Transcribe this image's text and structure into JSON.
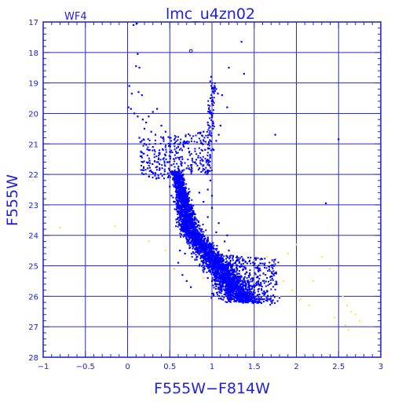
{
  "chart_data": {
    "type": "scatter",
    "title": "lmc_u4zn02",
    "chip_label": "WF4",
    "xlabel": "F555W−F814W",
    "ylabel": "F555W",
    "xlim": [
      -1,
      3
    ],
    "ylim": [
      28,
      17
    ],
    "y_inverted": true,
    "grid": true,
    "x_ticks": [
      -1,
      -0.5,
      0,
      0.5,
      1,
      1.5,
      2,
      2.5,
      3
    ],
    "x_tick_labels": [
      "−1",
      "−0.5",
      "0",
      "0.5",
      "1",
      "1.5",
      "2",
      "2.5",
      "3"
    ],
    "y_ticks": [
      17,
      18,
      19,
      20,
      21,
      22,
      23,
      24,
      25,
      26,
      27,
      28
    ],
    "y_tick_labels": [
      "17",
      "18",
      "19",
      "20",
      "21",
      "22",
      "23",
      "24",
      "25",
      "26",
      "27",
      "28"
    ],
    "colors": {
      "frame": "#1a1acc",
      "grid": "#2a2ad0",
      "text": "#2020e0",
      "blue_points": "#0000ff",
      "yellow_points": "#ffe84a"
    },
    "series": [
      {
        "color_key": "blue_points",
        "sampled": true,
        "points": [
          [
            0.07,
            17.1
          ],
          [
            0.11,
            17.05
          ],
          [
            0.12,
            18.05
          ],
          [
            0.1,
            18.45
          ],
          [
            0.14,
            18.5
          ],
          [
            0.02,
            19.1
          ],
          [
            0.05,
            19.35
          ],
          [
            0.13,
            19.3
          ],
          [
            0.17,
            19.4
          ],
          [
            0.01,
            19.8
          ],
          [
            0.04,
            19.85
          ],
          [
            0.08,
            20.0
          ],
          [
            0.12,
            20.1
          ],
          [
            0.18,
            20.2
          ],
          [
            0.22,
            20.3
          ],
          [
            0.25,
            20.1
          ],
          [
            0.3,
            19.95
          ],
          [
            0.35,
            19.85
          ],
          [
            0.2,
            20.5
          ],
          [
            0.28,
            20.6
          ],
          [
            0.33,
            20.7
          ],
          [
            0.4,
            20.4
          ],
          [
            0.45,
            20.6
          ],
          [
            0.5,
            20.8
          ],
          [
            0.55,
            21.0
          ],
          [
            0.6,
            21.1
          ],
          [
            0.14,
            20.8
          ],
          [
            0.2,
            21.0
          ],
          [
            0.25,
            21.2
          ],
          [
            0.3,
            21.1
          ],
          [
            0.38,
            21.3
          ],
          [
            0.42,
            21.5
          ],
          [
            0.47,
            21.6
          ],
          [
            0.52,
            21.7
          ],
          [
            0.18,
            21.6
          ],
          [
            0.24,
            21.8
          ],
          [
            0.26,
            21.55
          ],
          [
            0.35,
            21.75
          ],
          [
            0.44,
            21.9
          ],
          [
            0.58,
            22.0
          ],
          [
            0.62,
            22.2
          ],
          [
            0.48,
            22.1
          ],
          [
            0.55,
            21.5
          ],
          [
            0.65,
            21.9
          ],
          [
            0.7,
            21.8
          ],
          [
            0.75,
            21.7
          ],
          [
            0.8,
            21.6
          ],
          [
            0.85,
            21.8
          ],
          [
            0.9,
            21.7
          ],
          [
            0.95,
            21.9
          ],
          [
            0.58,
            21.3
          ],
          [
            0.65,
            21.5
          ],
          [
            0.9,
            20.6
          ],
          [
            0.95,
            20.3
          ],
          [
            0.98,
            20.0
          ],
          [
            1.0,
            19.6
          ],
          [
            1.02,
            19.3
          ],
          [
            1.05,
            19.2
          ],
          [
            0.98,
            18.95
          ],
          [
            0.99,
            18.8
          ],
          [
            1.07,
            19.35
          ],
          [
            1.12,
            19.4
          ],
          [
            1.18,
            19.8
          ],
          [
            1.05,
            20.9
          ],
          [
            1.02,
            21.2
          ],
          [
            1.1,
            20.4
          ],
          [
            1.08,
            20.7
          ],
          [
            1.2,
            18.5
          ],
          [
            1.35,
            17.65
          ],
          [
            1.38,
            18.7
          ],
          [
            1.75,
            20.7
          ],
          [
            2.5,
            20.85
          ],
          [
            2.35,
            22.95
          ],
          [
            0.95,
            22.5
          ],
          [
            0.98,
            22.2
          ],
          [
            1.0,
            22.7
          ],
          [
            0.5,
            22.4
          ],
          [
            0.52,
            22.7
          ],
          [
            0.55,
            22.9
          ],
          [
            0.6,
            23.1
          ],
          [
            0.62,
            23.4
          ],
          [
            0.65,
            23.6
          ],
          [
            0.68,
            23.8
          ],
          [
            0.7,
            24.0
          ],
          [
            0.72,
            24.2
          ],
          [
            0.74,
            24.4
          ],
          [
            0.76,
            24.6
          ],
          [
            0.8,
            24.8
          ],
          [
            0.85,
            25.0
          ],
          [
            0.9,
            25.2
          ],
          [
            0.95,
            25.4
          ],
          [
            1.0,
            25.5
          ],
          [
            1.05,
            25.6
          ],
          [
            1.1,
            25.7
          ],
          [
            1.15,
            25.8
          ],
          [
            1.2,
            25.9
          ],
          [
            1.25,
            26.0
          ],
          [
            1.3,
            26.1
          ],
          [
            1.4,
            26.2
          ],
          [
            1.5,
            26.05
          ],
          [
            1.6,
            26.1
          ],
          [
            1.7,
            26.0
          ],
          [
            1.8,
            26.05
          ],
          [
            0.58,
            22.3
          ],
          [
            0.66,
            22.6
          ],
          [
            0.72,
            22.9
          ],
          [
            0.78,
            23.2
          ],
          [
            0.82,
            23.5
          ],
          [
            0.88,
            23.8
          ],
          [
            0.92,
            24.1
          ],
          [
            0.98,
            24.4
          ],
          [
            1.05,
            24.7
          ],
          [
            1.12,
            25.0
          ],
          [
            1.2,
            25.2
          ],
          [
            1.3,
            25.4
          ],
          [
            1.4,
            25.6
          ],
          [
            1.5,
            25.8
          ],
          [
            1.6,
            25.9
          ],
          [
            0.6,
            24.9
          ],
          [
            0.55,
            25.1
          ],
          [
            0.65,
            25.3
          ],
          [
            0.7,
            25.5
          ],
          [
            0.75,
            25.7
          ],
          [
            0.62,
            24.5
          ],
          [
            0.68,
            24.6
          ],
          [
            1.2,
            24.5
          ],
          [
            1.3,
            24.8
          ],
          [
            1.4,
            25.1
          ],
          [
            1.55,
            25.5
          ],
          [
            1.45,
            25.3
          ],
          [
            1.35,
            25.0
          ],
          [
            1.25,
            24.7
          ],
          [
            1.15,
            24.2
          ],
          [
            1.05,
            23.9
          ],
          [
            0.95,
            23.4
          ],
          [
            0.9,
            22.9
          ],
          [
            0.85,
            22.6
          ],
          [
            1.0,
            23.1
          ],
          [
            1.08,
            23.6
          ],
          [
            1.18,
            24.0
          ]
        ]
      },
      {
        "color_key": "yellow_points",
        "sampled": true,
        "points": [
          [
            -0.8,
            23.75
          ],
          [
            -0.15,
            23.7
          ],
          [
            0.25,
            24.2
          ],
          [
            0.45,
            24.5
          ],
          [
            0.55,
            25.1
          ],
          [
            0.9,
            25.4
          ],
          [
            1.65,
            24.7
          ],
          [
            1.7,
            24.9
          ],
          [
            1.75,
            25.05
          ],
          [
            1.6,
            25.3
          ],
          [
            1.85,
            25.5
          ],
          [
            1.95,
            25.8
          ],
          [
            2.05,
            26.1
          ],
          [
            2.15,
            26.3
          ],
          [
            1.9,
            24.6
          ],
          [
            2.0,
            24.3
          ],
          [
            2.2,
            25.5
          ],
          [
            2.3,
            24.7
          ],
          [
            2.4,
            25.1
          ],
          [
            2.55,
            26.0
          ],
          [
            2.6,
            26.3
          ],
          [
            2.65,
            26.5
          ],
          [
            2.7,
            26.6
          ],
          [
            2.75,
            26.8
          ],
          [
            2.58,
            26.95
          ],
          [
            2.62,
            27.1
          ],
          [
            2.45,
            26.7
          ],
          [
            1.8,
            26.0
          ]
        ]
      }
    ]
  }
}
